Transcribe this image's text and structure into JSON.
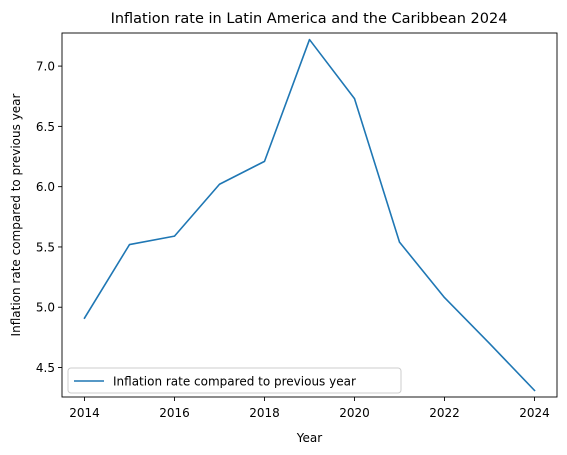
{
  "chart_data": {
    "type": "line",
    "title": "Inflation rate in Latin America and the Caribbean 2024",
    "xlabel": "Year",
    "ylabel": "Inflation rate compared to previous year",
    "x": [
      2014,
      2015,
      2016,
      2017,
      2018,
      2019,
      2020,
      2021,
      2022,
      2023,
      2024
    ],
    "series": [
      {
        "name": "Inflation rate compared to previous year",
        "values": [
          4.91,
          5.52,
          5.59,
          6.02,
          6.21,
          7.22,
          6.73,
          5.54,
          5.08,
          4.7,
          4.31
        ],
        "color": "#1f77b4"
      }
    ],
    "xlim": [
      2013.5,
      2024.5
    ],
    "ylim": [
      4.2555,
      7.2745
    ],
    "xticks": [
      2014,
      2016,
      2018,
      2020,
      2022,
      2024
    ],
    "yticks": [
      4.5,
      5.0,
      5.5,
      6.0,
      6.5,
      7.0
    ],
    "xtick_labels": [
      "2014",
      "2016",
      "2018",
      "2020",
      "2022",
      "2024"
    ],
    "ytick_labels": [
      "4.5",
      "5.0",
      "5.5",
      "6.0",
      "6.5",
      "7.0"
    ],
    "grid": false,
    "legend_position": "lower-left"
  }
}
